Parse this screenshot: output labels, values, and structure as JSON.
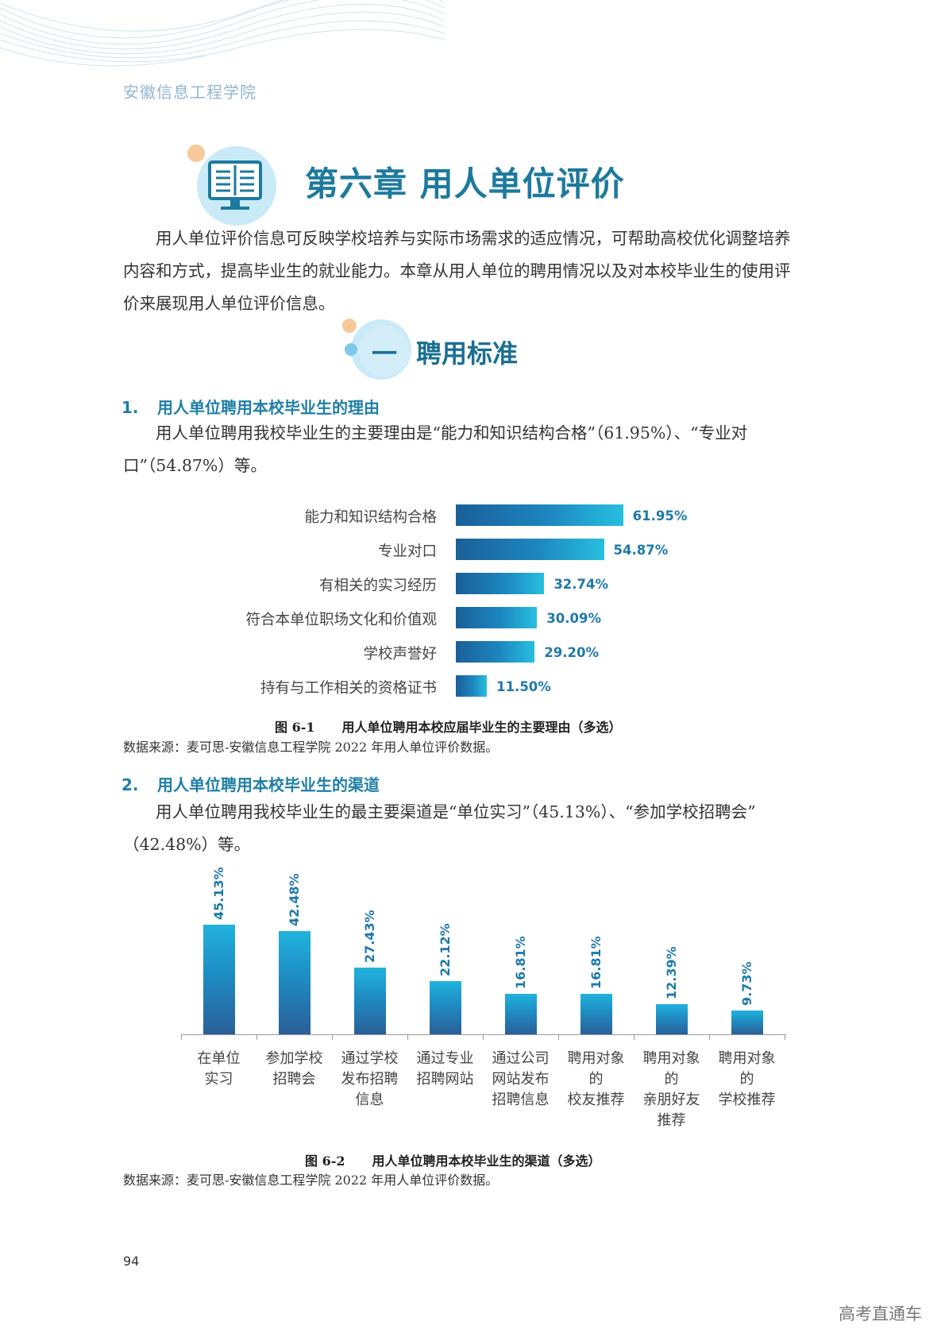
{
  "header": {
    "school_name": "安徽信息工程学院"
  },
  "chapter": {
    "title": "第六章 用人单位评价",
    "icon": "book-monitor-icon"
  },
  "intro": {
    "lines": [
      "用人单位评价信息可反映学校培养与实际市场需求的适应情况，可帮助高校优化调整培养",
      "内容和方式，提高毕业生的就业能力。本章从用人单位的聘用情况以及对本校毕业生的使用评",
      "价来展现用人单位评价信息。"
    ]
  },
  "section": {
    "number": "一",
    "title": "聘用标准"
  },
  "sub1": {
    "number": "1.",
    "title": "用人单位聘用本校毕业生的理由",
    "lines": [
      "用人单位聘用我校毕业生的主要理由是“能力和知识结构合格”（61.95%）、“专业对",
      "口”（54.87%）等。"
    ]
  },
  "figure1": {
    "label": "图 6-1",
    "caption": "用人单位聘用本校应届毕业生的主要理由（多选）",
    "source": "数据来源：麦可思-安徽信息工程学院 2022 年用人单位评价数据。",
    "value_labels": [
      "61.95%",
      "54.87%",
      "32.74%",
      "30.09%",
      "29.20%",
      "11.50%"
    ]
  },
  "sub2": {
    "number": "2.",
    "title": "用人单位聘用本校毕业生的渠道",
    "lines": [
      "用人单位聘用我校毕业生的最主要渠道是“单位实习”（45.13%）、“参加学校招聘会”",
      "（42.48%）等。"
    ]
  },
  "figure2": {
    "label": "图 6-2",
    "caption": "用人单位聘用本校毕业生的渠道（多选）",
    "source": "数据来源：麦可思-安徽信息工程学院 2022 年用人单位评价数据。",
    "value_labels": [
      "45.13%",
      "42.48%",
      "27.43%",
      "22.12%",
      "16.81%",
      "16.81%",
      "12.39%",
      "9.73%"
    ],
    "category_lines": [
      [
        "在单位",
        "实习"
      ],
      [
        "参加学校",
        "招聘会"
      ],
      [
        "通过学校",
        "发布招聘",
        "信息"
      ],
      [
        "通过专业",
        "招聘网站"
      ],
      [
        "通过公司",
        "网站发布",
        "招聘信息"
      ],
      [
        "聘用对象",
        "的",
        "校友推荐"
      ],
      [
        "聘用对象",
        "的",
        "亲朋好友",
        "推荐"
      ],
      [
        "聘用对象",
        "的",
        "学校推荐"
      ]
    ]
  },
  "footer": {
    "page_number": "94",
    "watermark": "高考直通车"
  },
  "colors": {
    "accent": "#1d7a9e",
    "bar_dark": "#1a5f98",
    "bar_light": "#27bfe0",
    "value_text": "#1f79ab"
  },
  "chart_data": [
    {
      "type": "bar",
      "orientation": "horizontal",
      "categories": [
        "能力和知识结构合格",
        "专业对口",
        "有相关的实习经历",
        "符合本单位职场文化和价值观",
        "学校声誉好",
        "持有与工作相关的资格证书"
      ],
      "values": [
        61.95,
        54.87,
        32.74,
        30.09,
        29.2,
        11.5
      ],
      "unit": "%",
      "xlim": [
        0,
        100
      ]
    },
    {
      "type": "bar",
      "orientation": "vertical",
      "categories": [
        "在单位实习",
        "参加学校招聘会",
        "通过学校发布招聘信息",
        "通过专业招聘网站",
        "通过公司网站发布招聘信息",
        "聘用对象的校友推荐",
        "聘用对象的亲朋好友推荐",
        "聘用对象的学校推荐"
      ],
      "values": [
        45.13,
        42.48,
        27.43,
        22.12,
        16.81,
        16.81,
        12.39,
        9.73
      ],
      "unit": "%",
      "ylim": [
        0,
        50
      ]
    }
  ]
}
